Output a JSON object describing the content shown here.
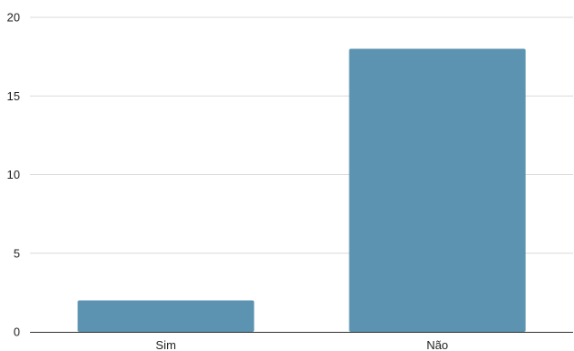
{
  "chart_data": {
    "type": "bar",
    "title": "",
    "xlabel": "",
    "ylabel": "",
    "categories": [
      "Sim",
      "Não"
    ],
    "values": [
      2,
      18
    ],
    "ylim": [
      0,
      20
    ],
    "yticks": [
      "0",
      "5",
      "10",
      "15",
      "20"
    ],
    "ytick_values": [
      0,
      5,
      10,
      15,
      20
    ],
    "grid": true,
    "legend": "none",
    "bar_color": "#5b93b0",
    "grid_color": "#d9d9d9",
    "axis_color": "#333333"
  }
}
